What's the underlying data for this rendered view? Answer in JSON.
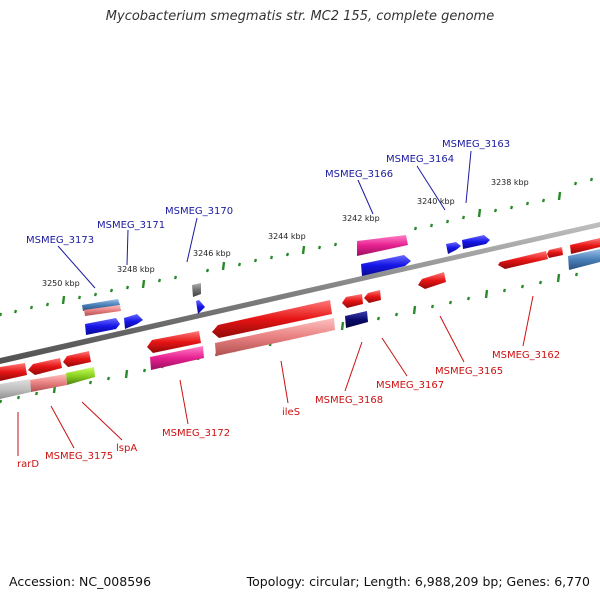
{
  "title": "Mycobacterium smegmatis str. MC2 155, complete genome",
  "footer": {
    "accession": "Accession: NC_008596",
    "topology": "Topology: circular; Length: 6,988,209 bp; Genes: 6,770"
  },
  "colors": {
    "backbone": "#8a8a8a",
    "tick": "#2a8a2a",
    "forward_gene": "#1414e6",
    "reverse_gene": "#e61414",
    "rna_pink": "#e62090",
    "pseudo_pink": "#e88080",
    "navy": "#0a0a6e",
    "steel": "#4a80b8",
    "lime": "#8ad020",
    "gray_gene": "#707070",
    "label_blue": "#1a1aa0",
    "label_red": "#cc1111"
  },
  "scale_labels": [
    "3238 kbp",
    "3240 kbp",
    "3242 kbp",
    "3244 kbp",
    "3246 kbp",
    "3248 kbp",
    "3250 kbp"
  ],
  "labels_forward": [
    "MSMEG_3163",
    "MSMEG_3164",
    "MSMEG_3166",
    "MSMEG_3170",
    "MSMEG_3171",
    "MSMEG_3173"
  ],
  "labels_reverse": [
    "MSMEG_3162",
    "MSMEG_3165",
    "MSMEG_3167",
    "MSMEG_3168",
    "ileS",
    "MSMEG_3172",
    "lspA",
    "MSMEG_3175",
    "rarD"
  ]
}
